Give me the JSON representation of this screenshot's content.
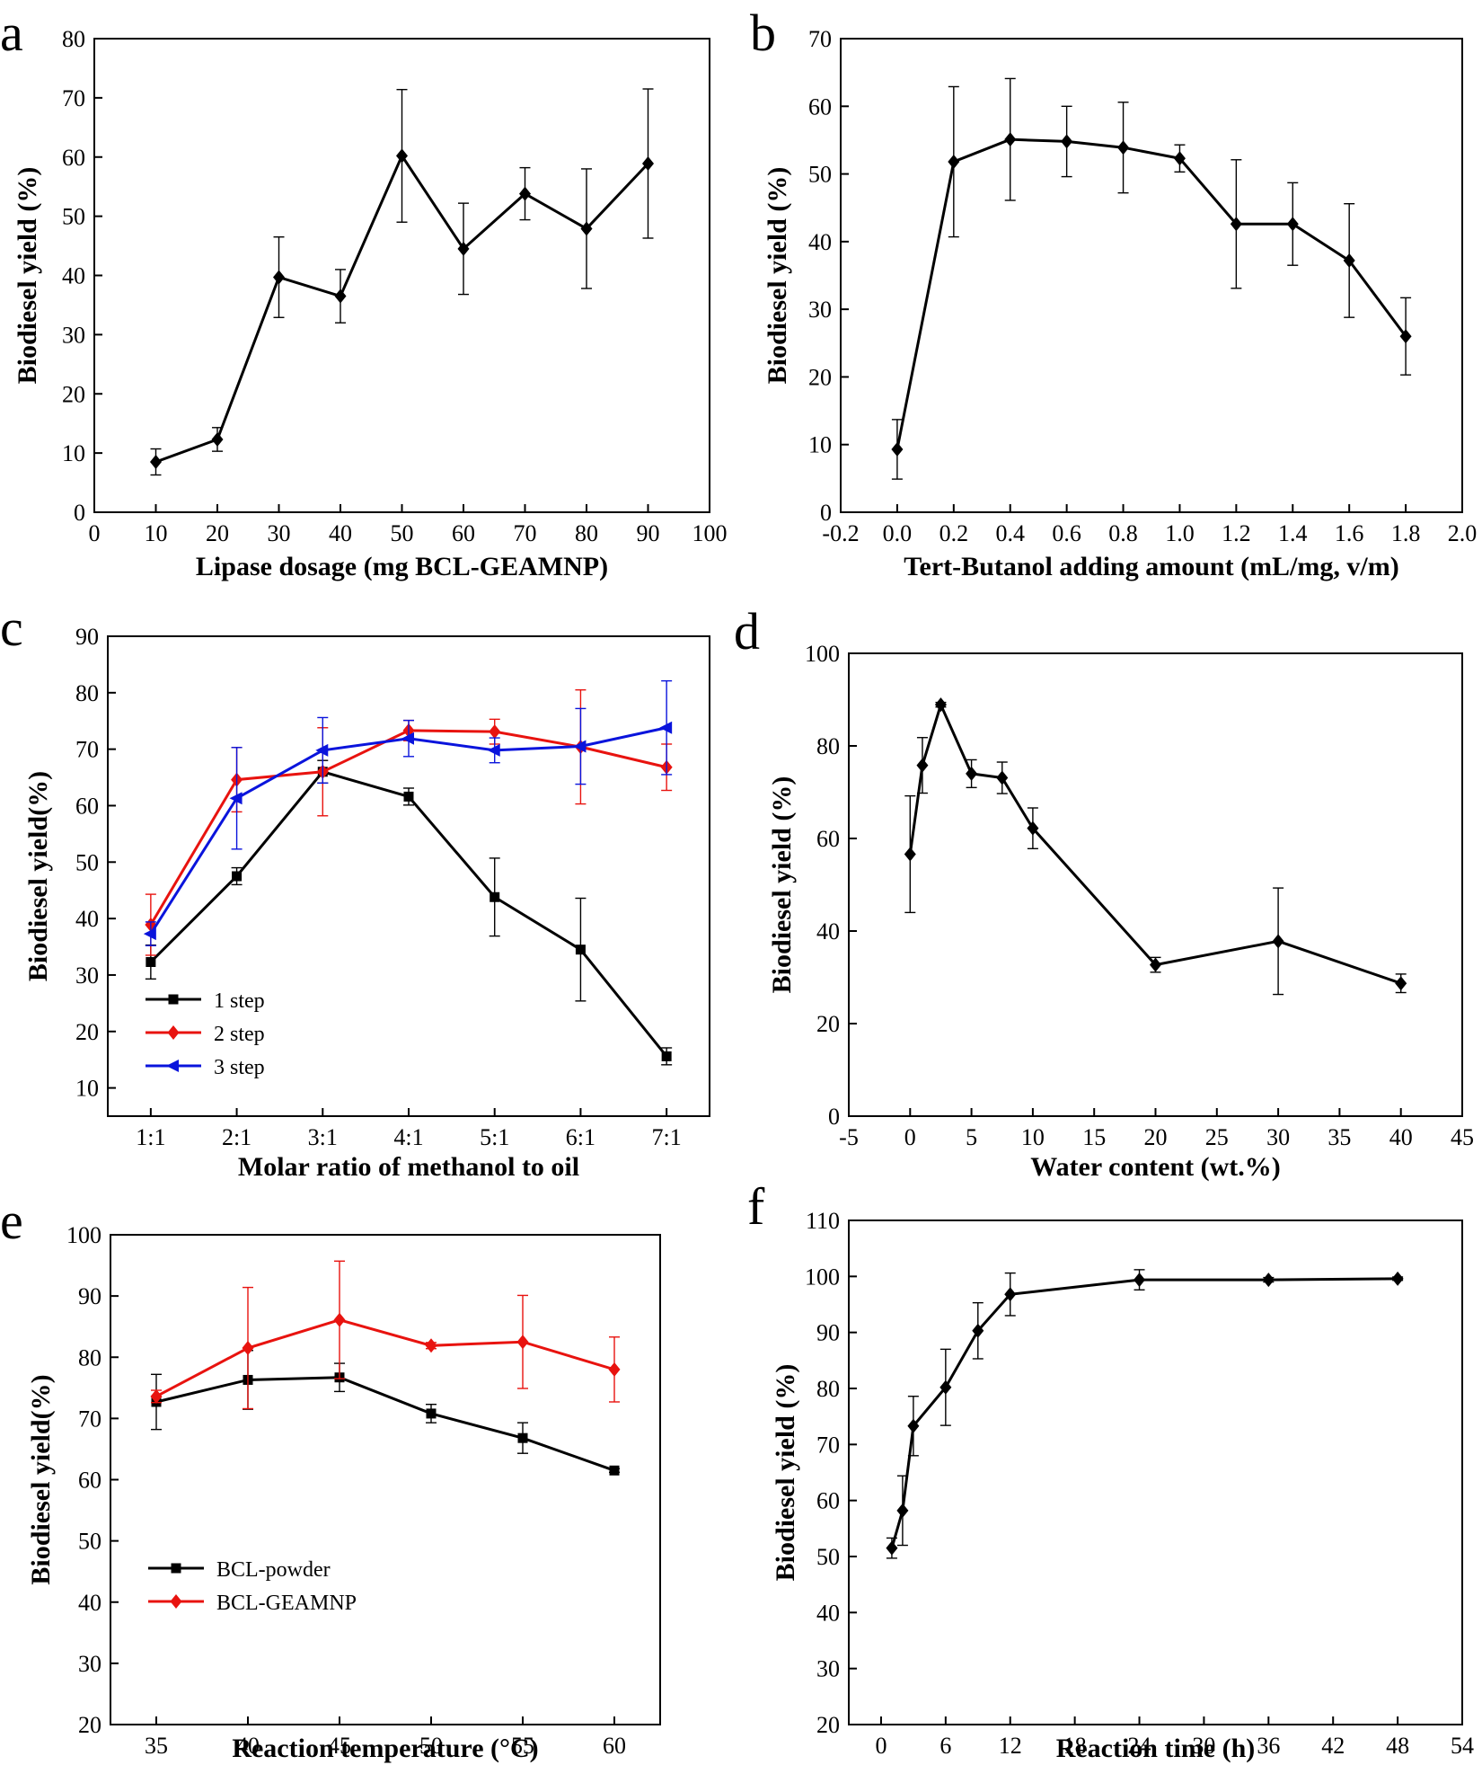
{
  "chart_data": [
    {
      "panel": "a",
      "type": "line",
      "xlabel": "Lipase dosage (mg BCL-GEAMNP)",
      "ylabel": "Biodiesel yield (%)",
      "xlim": [
        0,
        100
      ],
      "ylim": [
        0,
        80
      ],
      "xticks": [
        0,
        10,
        20,
        30,
        40,
        50,
        60,
        70,
        80,
        90,
        100
      ],
      "yticks": [
        0,
        10,
        20,
        30,
        40,
        50,
        60,
        70,
        80
      ],
      "series": [
        {
          "name": "",
          "color": "#000000",
          "marker": "diamond",
          "x": [
            10,
            20,
            30,
            40,
            50,
            60,
            70,
            80,
            90
          ],
          "y": [
            8.5,
            12.3,
            39.7,
            36.5,
            60.2,
            44.5,
            53.8,
            47.9,
            58.9
          ],
          "err": [
            2.2,
            2.0,
            6.8,
            4.5,
            11.2,
            7.7,
            4.4,
            10.1,
            12.6
          ]
        }
      ]
    },
    {
      "panel": "b",
      "type": "line",
      "xlabel": "Tert-Butanol adding amount (mL/mg, v/m)",
      "ylabel": "Biodiesel yield (%)",
      "xlim": [
        -0.2,
        2.0
      ],
      "ylim": [
        0,
        70
      ],
      "xticks": [
        -0.2,
        0.0,
        0.2,
        0.4,
        0.6,
        0.8,
        1.0,
        1.2,
        1.4,
        1.6,
        1.8,
        2.0
      ],
      "xtick_labels": [
        "-0.2",
        "0.0",
        "0.2",
        "0.4",
        "0.6",
        "0.8",
        "1.0",
        "1.2",
        "1.4",
        "1.6",
        "1.8",
        "2.0"
      ],
      "yticks": [
        0,
        10,
        20,
        30,
        40,
        50,
        60,
        70
      ],
      "series": [
        {
          "name": "",
          "color": "#000000",
          "marker": "diamond",
          "x": [
            0.0,
            0.2,
            0.4,
            0.6,
            0.8,
            1.0,
            1.2,
            1.4,
            1.6,
            1.8
          ],
          "y": [
            9.3,
            51.8,
            55.1,
            54.8,
            53.9,
            52.3,
            42.6,
            42.6,
            37.2,
            26.0
          ],
          "err": [
            4.4,
            11.1,
            9.0,
            5.2,
            6.7,
            2.0,
            9.5,
            6.1,
            8.4,
            5.7
          ]
        }
      ]
    },
    {
      "panel": "c",
      "type": "line",
      "xlabel": "Molar ratio of methanol to oil",
      "ylabel": "Biodiesel yield(%)",
      "xlim": [
        0.5,
        7.5
      ],
      "ylim": [
        5,
        90
      ],
      "xticks": [
        1,
        2,
        3,
        4,
        5,
        6,
        7
      ],
      "xtick_labels": [
        "1:1",
        "2:1",
        "3:1",
        "4:1",
        "5:1",
        "6:1",
        "7:1"
      ],
      "yticks": [
        10,
        20,
        30,
        40,
        50,
        60,
        70,
        80,
        90
      ],
      "legend": "lower-left",
      "series": [
        {
          "name": "1 step",
          "color": "#000000",
          "marker": "square",
          "x": [
            1,
            2,
            3,
            4,
            5,
            6,
            7
          ],
          "y": [
            32.3,
            47.5,
            66.0,
            61.6,
            43.8,
            34.5,
            15.6
          ],
          "err": [
            3.0,
            1.5,
            2.0,
            1.5,
            6.9,
            9.1,
            1.5
          ]
        },
        {
          "name": "2 step",
          "color": "#e8130f",
          "marker": "diamond",
          "x": [
            1,
            2,
            3,
            4,
            5,
            6,
            7
          ],
          "y": [
            38.9,
            64.6,
            66.0,
            73.3,
            73.1,
            70.4,
            66.8
          ],
          "err": [
            5.4,
            5.7,
            7.8,
            1.8,
            2.2,
            10.1,
            4.1
          ]
        },
        {
          "name": "3 step",
          "color": "#0a14dc",
          "marker": "triangle-left",
          "x": [
            1,
            2,
            3,
            4,
            5,
            6,
            7
          ],
          "y": [
            37.3,
            61.3,
            69.8,
            71.9,
            69.8,
            70.5,
            73.8
          ],
          "err": [
            2.1,
            9.0,
            5.8,
            3.2,
            2.2,
            6.7,
            8.3
          ]
        }
      ]
    },
    {
      "panel": "d",
      "type": "line",
      "xlabel": "Water content (wt.%)",
      "ylabel": "Biodiesel yield (%)",
      "xlim": [
        -5,
        45
      ],
      "ylim": [
        0,
        100
      ],
      "xticks": [
        -5,
        0,
        5,
        10,
        15,
        20,
        25,
        30,
        35,
        40,
        45
      ],
      "yticks": [
        0,
        20,
        40,
        60,
        80,
        100
      ],
      "series": [
        {
          "name": "",
          "color": "#000000",
          "marker": "diamond",
          "x": [
            0,
            1,
            2.5,
            5,
            7.5,
            10,
            20,
            30,
            40
          ],
          "y": [
            56.6,
            75.8,
            88.9,
            74.0,
            73.1,
            62.2,
            32.7,
            37.8,
            28.7
          ],
          "err": [
            12.6,
            6.0,
            0.5,
            3.0,
            3.4,
            4.4,
            1.6,
            11.5,
            2.0
          ]
        }
      ]
    },
    {
      "panel": "e",
      "type": "line",
      "xlabel": "Reaction temperature (°C)",
      "ylabel": "Biodiesel yield(%)",
      "xlim": [
        32.5,
        62.5
      ],
      "ylim": [
        20,
        100
      ],
      "xticks": [
        35,
        40,
        45,
        50,
        55,
        60
      ],
      "yticks": [
        20,
        30,
        40,
        50,
        60,
        70,
        80,
        90,
        100
      ],
      "legend": "lower-left",
      "series": [
        {
          "name": "BCL-powder",
          "color": "#000000",
          "marker": "square",
          "x": [
            35,
            40,
            45,
            50,
            55,
            60
          ],
          "y": [
            72.7,
            76.3,
            76.7,
            70.8,
            66.8,
            61.5
          ],
          "err": [
            4.5,
            4.8,
            2.3,
            1.5,
            2.5,
            0.3
          ]
        },
        {
          "name": "BCL-GEAMNP",
          "color": "#e8130f",
          "marker": "diamond",
          "x": [
            35,
            40,
            45,
            50,
            55,
            60
          ],
          "y": [
            73.6,
            81.5,
            86.1,
            81.9,
            82.5,
            78.0
          ],
          "err": [
            1.0,
            9.9,
            9.6,
            0.5,
            7.6,
            5.3
          ]
        }
      ]
    },
    {
      "panel": "f",
      "type": "line",
      "xlabel": "Reaction time (h)",
      "ylabel": "Biodiesel yield (%)",
      "xlim": [
        -3,
        54
      ],
      "ylim": [
        20,
        110
      ],
      "xticks": [
        0,
        6,
        12,
        18,
        24,
        30,
        36,
        42,
        48,
        54
      ],
      "yticks": [
        20,
        30,
        40,
        50,
        60,
        70,
        80,
        90,
        100,
        110
      ],
      "series": [
        {
          "name": "",
          "color": "#000000",
          "marker": "diamond",
          "x": [
            1,
            2,
            3,
            6,
            9,
            12,
            24,
            36,
            48
          ],
          "y": [
            51.5,
            58.2,
            73.3,
            80.2,
            90.3,
            96.8,
            99.4,
            99.4,
            99.6
          ],
          "err": [
            1.8,
            6.2,
            5.3,
            6.8,
            5.0,
            3.8,
            1.8,
            0.4,
            0.3
          ]
        }
      ]
    }
  ]
}
